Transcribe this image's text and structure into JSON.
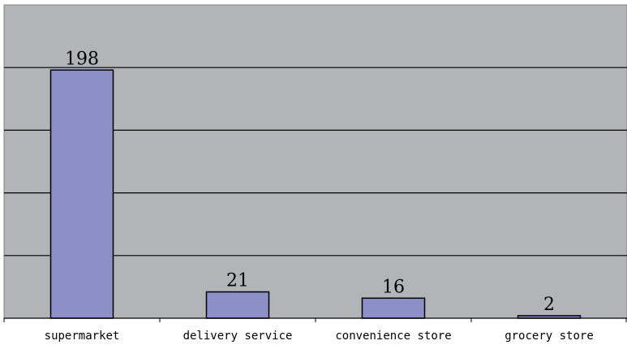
{
  "chart_data": {
    "type": "bar",
    "title": "",
    "xlabel": "",
    "ylabel": "",
    "categories": [
      "supermarket",
      "delivery service",
      "convenience store",
      "grocery store"
    ],
    "values": [
      198,
      21,
      16,
      2
    ],
    "data_labels": [
      "198",
      "21",
      "16",
      "2"
    ],
    "ylim": [
      0,
      250
    ],
    "grid": true,
    "grid_step": 50,
    "legend": "none",
    "colors": {
      "plot_background": "#b3b4b8",
      "bar_fill": "#8c8fc8",
      "bar_stroke": "#000000",
      "grid_line": "#000000",
      "page_background": "#ffffff"
    }
  }
}
